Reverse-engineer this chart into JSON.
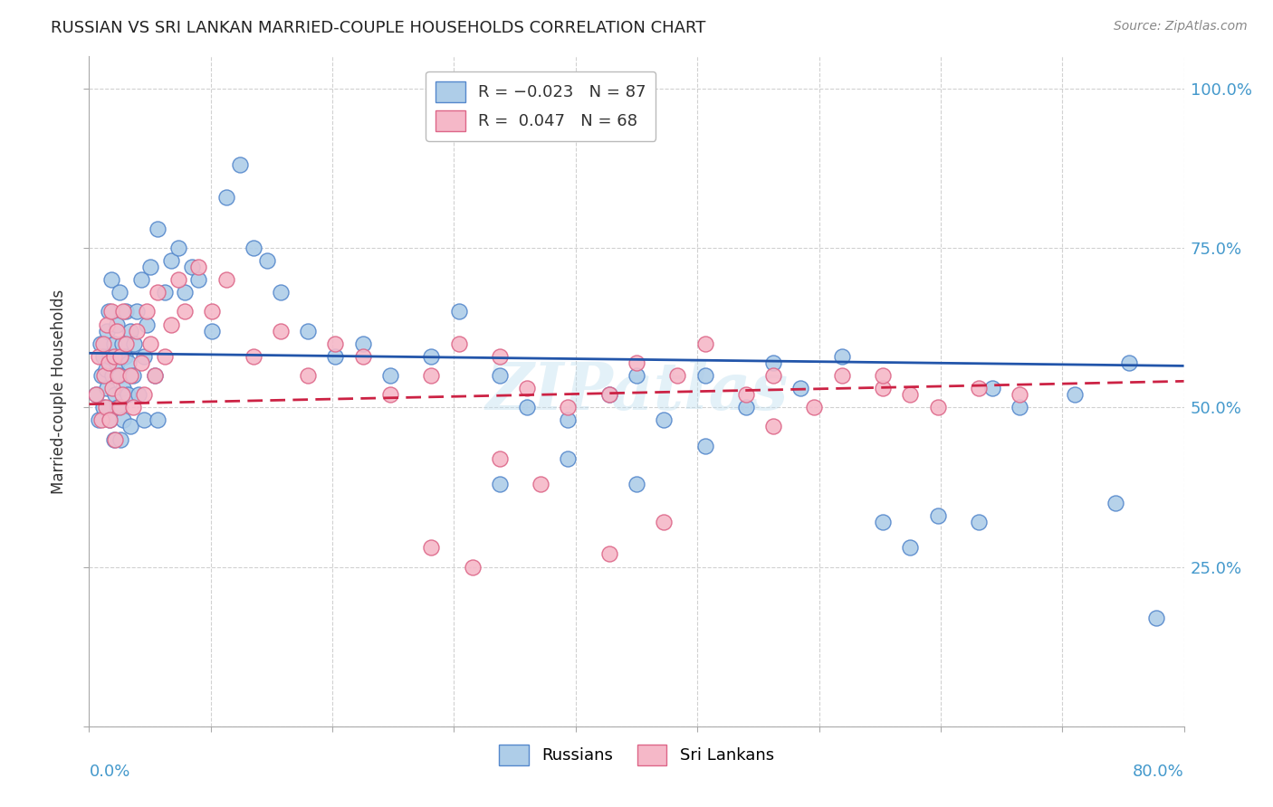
{
  "title": "RUSSIAN VS SRI LANKAN MARRIED-COUPLE HOUSEHOLDS CORRELATION CHART",
  "source": "Source: ZipAtlas.com",
  "ylabel": "Married-couple Households",
  "xlim": [
    0.0,
    0.8
  ],
  "ylim": [
    0.0,
    1.05
  ],
  "russian_color": "#aecde8",
  "srilankan_color": "#f5b8c8",
  "russian_edge": "#5588cc",
  "srilankan_edge": "#dd6688",
  "trend_russian_color": "#2255aa",
  "trend_srilankan_color": "#cc2244",
  "background_color": "#ffffff",
  "title_color": "#222222",
  "axis_label_color": "#4499cc",
  "watermark": "ZIPatlas",
  "russian_R": -0.023,
  "russian_N": 87,
  "srilankan_R": 0.047,
  "srilankan_N": 68,
  "trend_rus_intercept": 0.585,
  "trend_rus_slope": -0.025,
  "trend_sri_intercept": 0.505,
  "trend_sri_slope": 0.045,
  "rus_x": [
    0.005,
    0.007,
    0.008,
    0.009,
    0.01,
    0.01,
    0.012,
    0.013,
    0.013,
    0.014,
    0.015,
    0.015,
    0.016,
    0.017,
    0.018,
    0.018,
    0.019,
    0.02,
    0.02,
    0.021,
    0.022,
    0.022,
    0.023,
    0.024,
    0.025,
    0.025,
    0.026,
    0.027,
    0.028,
    0.029,
    0.03,
    0.03,
    0.032,
    0.033,
    0.035,
    0.036,
    0.038,
    0.04,
    0.04,
    0.042,
    0.045,
    0.048,
    0.05,
    0.05,
    0.055,
    0.06,
    0.065,
    0.07,
    0.075,
    0.08,
    0.09,
    0.1,
    0.11,
    0.12,
    0.13,
    0.14,
    0.16,
    0.18,
    0.2,
    0.22,
    0.25,
    0.27,
    0.3,
    0.32,
    0.35,
    0.38,
    0.4,
    0.42,
    0.45,
    0.48,
    0.5,
    0.52,
    0.55,
    0.58,
    0.6,
    0.62,
    0.65,
    0.66,
    0.68,
    0.72,
    0.75,
    0.76,
    0.78,
    0.3,
    0.35,
    0.4,
    0.45
  ],
  "rus_y": [
    0.52,
    0.48,
    0.6,
    0.55,
    0.5,
    0.58,
    0.56,
    0.62,
    0.53,
    0.65,
    0.58,
    0.48,
    0.7,
    0.55,
    0.6,
    0.45,
    0.52,
    0.57,
    0.63,
    0.5,
    0.68,
    0.55,
    0.45,
    0.6,
    0.53,
    0.48,
    0.58,
    0.65,
    0.52,
    0.57,
    0.62,
    0.47,
    0.55,
    0.6,
    0.65,
    0.52,
    0.7,
    0.58,
    0.48,
    0.63,
    0.72,
    0.55,
    0.78,
    0.48,
    0.68,
    0.73,
    0.75,
    0.68,
    0.72,
    0.7,
    0.62,
    0.83,
    0.88,
    0.75,
    0.73,
    0.68,
    0.62,
    0.58,
    0.6,
    0.55,
    0.58,
    0.65,
    0.55,
    0.5,
    0.48,
    0.52,
    0.55,
    0.48,
    0.55,
    0.5,
    0.57,
    0.53,
    0.58,
    0.32,
    0.28,
    0.33,
    0.32,
    0.53,
    0.5,
    0.52,
    0.35,
    0.57,
    0.17,
    0.38,
    0.42,
    0.38,
    0.44
  ],
  "sri_x": [
    0.005,
    0.007,
    0.009,
    0.01,
    0.011,
    0.012,
    0.013,
    0.014,
    0.015,
    0.016,
    0.017,
    0.018,
    0.019,
    0.02,
    0.021,
    0.022,
    0.023,
    0.024,
    0.025,
    0.027,
    0.03,
    0.032,
    0.035,
    0.038,
    0.04,
    0.042,
    0.045,
    0.048,
    0.05,
    0.055,
    0.06,
    0.065,
    0.07,
    0.08,
    0.09,
    0.1,
    0.12,
    0.14,
    0.16,
    0.18,
    0.2,
    0.22,
    0.25,
    0.27,
    0.3,
    0.32,
    0.35,
    0.38,
    0.4,
    0.43,
    0.45,
    0.48,
    0.5,
    0.53,
    0.55,
    0.58,
    0.6,
    0.62,
    0.65,
    0.68,
    0.25,
    0.28,
    0.3,
    0.33,
    0.38,
    0.42,
    0.5,
    0.58
  ],
  "sri_y": [
    0.52,
    0.58,
    0.48,
    0.6,
    0.55,
    0.5,
    0.63,
    0.57,
    0.48,
    0.65,
    0.53,
    0.58,
    0.45,
    0.62,
    0.55,
    0.5,
    0.58,
    0.52,
    0.65,
    0.6,
    0.55,
    0.5,
    0.62,
    0.57,
    0.52,
    0.65,
    0.6,
    0.55,
    0.68,
    0.58,
    0.63,
    0.7,
    0.65,
    0.72,
    0.65,
    0.7,
    0.58,
    0.62,
    0.55,
    0.6,
    0.58,
    0.52,
    0.55,
    0.6,
    0.58,
    0.53,
    0.5,
    0.52,
    0.57,
    0.55,
    0.6,
    0.52,
    0.55,
    0.5,
    0.55,
    0.53,
    0.52,
    0.5,
    0.53,
    0.52,
    0.28,
    0.25,
    0.42,
    0.38,
    0.27,
    0.32,
    0.47,
    0.55
  ]
}
